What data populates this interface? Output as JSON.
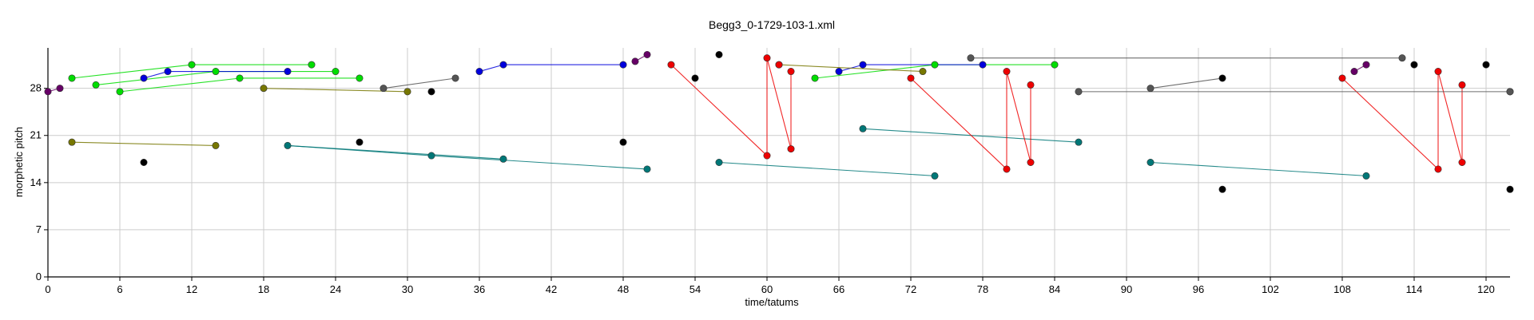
{
  "chart_data": {
    "type": "scatter",
    "title": "Begg3_0-1729-103-1.xml",
    "xlabel": "time/tatums",
    "ylabel": "morphetic pitch",
    "xlim": [
      0,
      122
    ],
    "ylim": [
      0,
      34
    ],
    "xticks": [
      0,
      6,
      12,
      18,
      24,
      30,
      36,
      42,
      48,
      54,
      60,
      66,
      72,
      78,
      84,
      90,
      96,
      102,
      108,
      114,
      120
    ],
    "yticks": [
      0,
      7,
      14,
      21,
      28
    ],
    "grid": true,
    "legend": "none",
    "colors": {
      "black": "#000000",
      "green": "#00dd00",
      "blue": "#0000dd",
      "purple": "#660066",
      "olive": "#777700",
      "teal": "#007777",
      "red": "#ee0000",
      "gray": "#555555",
      "grid": "#cccccc"
    },
    "series": [
      {
        "color": "#000000",
        "points": [
          [
            8,
            17
          ],
          [
            26,
            20
          ],
          [
            32,
            27.5
          ],
          [
            48,
            20
          ],
          [
            54,
            29.5
          ],
          [
            56,
            33
          ],
          [
            98,
            13
          ],
          [
            98,
            29.5
          ],
          [
            114,
            31.5
          ],
          [
            120,
            31.5
          ],
          [
            122,
            13
          ],
          [
            122,
            27.5
          ]
        ]
      },
      {
        "color": "#00dd00",
        "points": [
          [
            2,
            29.5
          ],
          [
            12,
            31.5
          ],
          [
            22,
            31.5
          ],
          [
            4,
            28.5
          ],
          [
            26,
            29.5
          ],
          [
            6,
            27.5
          ],
          [
            16,
            29.5
          ],
          [
            14,
            30.5
          ],
          [
            24,
            30.5
          ],
          [
            64,
            29.5
          ],
          [
            74,
            31.5
          ],
          [
            84,
            31.5
          ]
        ],
        "segments": [
          [
            [
              2,
              29.5
            ],
            [
              12,
              31.5
            ]
          ],
          [
            [
              12,
              31.5
            ],
            [
              22,
              31.5
            ]
          ],
          [
            [
              4,
              28.5
            ],
            [
              14,
              30.5
            ]
          ],
          [
            [
              14,
              30.5
            ],
            [
              24,
              30.5
            ]
          ],
          [
            [
              6,
              27.5
            ],
            [
              16,
              29.5
            ]
          ],
          [
            [
              16,
              29.5
            ],
            [
              26,
              29.5
            ]
          ],
          [
            [
              64,
              29.5
            ],
            [
              74,
              31.5
            ]
          ],
          [
            [
              74,
              31.5
            ],
            [
              84,
              31.5
            ]
          ]
        ]
      },
      {
        "color": "#0000dd",
        "points": [
          [
            8,
            29.5
          ],
          [
            10,
            30.5
          ],
          [
            20,
            30.5
          ],
          [
            36,
            30.5
          ],
          [
            38,
            31.5
          ],
          [
            48,
            31.5
          ],
          [
            66,
            30.5
          ],
          [
            68,
            31.5
          ],
          [
            78,
            31.5
          ]
        ],
        "segments": [
          [
            [
              8,
              29.5
            ],
            [
              10,
              30.5
            ]
          ],
          [
            [
              10,
              30.5
            ],
            [
              20,
              30.5
            ]
          ],
          [
            [
              36,
              30.5
            ],
            [
              38,
              31.5
            ]
          ],
          [
            [
              38,
              31.5
            ],
            [
              48,
              31.5
            ]
          ],
          [
            [
              66,
              30.5
            ],
            [
              68,
              31.5
            ]
          ],
          [
            [
              68,
              31.5
            ],
            [
              78,
              31.5
            ]
          ]
        ]
      },
      {
        "color": "#660066",
        "points": [
          [
            0,
            27.5
          ],
          [
            1,
            28
          ],
          [
            49,
            32
          ],
          [
            50,
            33
          ],
          [
            109,
            30.5
          ],
          [
            110,
            31.5
          ]
        ],
        "segments": [
          [
            [
              0,
              27.5
            ],
            [
              1,
              28
            ]
          ],
          [
            [
              49,
              32
            ],
            [
              50,
              33
            ]
          ],
          [
            [
              109,
              30.5
            ],
            [
              110,
              31.5
            ]
          ]
        ]
      },
      {
        "color": "#777700",
        "points": [
          [
            2,
            20
          ],
          [
            14,
            19.5
          ],
          [
            18,
            28
          ],
          [
            30,
            27.5
          ],
          [
            61,
            31.5
          ],
          [
            73,
            30.5
          ]
        ],
        "segments": [
          [
            [
              2,
              20
            ],
            [
              14,
              19.5
            ]
          ],
          [
            [
              18,
              28
            ],
            [
              30,
              27.5
            ]
          ],
          [
            [
              61,
              31.5
            ],
            [
              73,
              30.5
            ]
          ]
        ]
      },
      {
        "color": "#007777",
        "points": [
          [
            20,
            19.5
          ],
          [
            32,
            18
          ],
          [
            38,
            17.5
          ],
          [
            50,
            16
          ],
          [
            56,
            17
          ],
          [
            74,
            15
          ],
          [
            68,
            22
          ],
          [
            86,
            20
          ],
          [
            92,
            17
          ],
          [
            110,
            15
          ]
        ],
        "segments": [
          [
            [
              20,
              19.5
            ],
            [
              38,
              17.5
            ]
          ],
          [
            [
              20,
              19.5
            ],
            [
              32,
              18
            ]
          ],
          [
            [
              32,
              18
            ],
            [
              50,
              16
            ]
          ],
          [
            [
              56,
              17
            ],
            [
              74,
              15
            ]
          ],
          [
            [
              68,
              22
            ],
            [
              86,
              20
            ]
          ],
          [
            [
              92,
              17
            ],
            [
              110,
              15
            ]
          ]
        ]
      },
      {
        "color": "#ee0000",
        "points": [
          [
            52,
            31.5
          ],
          [
            60,
            18
          ],
          [
            60,
            32.5
          ],
          [
            61,
            31.5
          ],
          [
            62,
            19
          ],
          [
            62,
            30.5
          ],
          [
            72,
            29.5
          ],
          [
            80,
            16
          ],
          [
            80,
            30.5
          ],
          [
            82,
            17
          ],
          [
            82,
            28.5
          ],
          [
            108,
            29.5
          ],
          [
            116,
            16
          ],
          [
            116,
            30.5
          ],
          [
            118,
            17
          ],
          [
            118,
            28.5
          ]
        ],
        "segments": [
          [
            [
              52,
              31.5
            ],
            [
              60,
              18
            ]
          ],
          [
            [
              60,
              18
            ],
            [
              60,
              32.5
            ]
          ],
          [
            [
              60,
              32.5
            ],
            [
              62,
              19
            ]
          ],
          [
            [
              62,
              19
            ],
            [
              62,
              30.5
            ]
          ],
          [
            [
              72,
              29.5
            ],
            [
              80,
              16
            ]
          ],
          [
            [
              80,
              16
            ],
            [
              80,
              30.5
            ]
          ],
          [
            [
              80,
              30.5
            ],
            [
              82,
              17
            ]
          ],
          [
            [
              82,
              17
            ],
            [
              82,
              28.5
            ]
          ],
          [
            [
              108,
              29.5
            ],
            [
              116,
              16
            ]
          ],
          [
            [
              116,
              16
            ],
            [
              116,
              30.5
            ]
          ],
          [
            [
              116,
              30.5
            ],
            [
              118,
              17
            ]
          ],
          [
            [
              118,
              17
            ],
            [
              118,
              28.5
            ]
          ]
        ]
      },
      {
        "color": "#555555",
        "points": [
          [
            28,
            28
          ],
          [
            34,
            29.5
          ],
          [
            77,
            32.5
          ],
          [
            113,
            32.5
          ],
          [
            86,
            27.5
          ],
          [
            92,
            28
          ],
          [
            122,
            27.5
          ]
        ],
        "segments": [
          [
            [
              28,
              28
            ],
            [
              34,
              29.5
            ]
          ],
          [
            [
              77,
              32.5
            ],
            [
              113,
              32.5
            ]
          ],
          [
            [
              86,
              27.5
            ],
            [
              122,
              27.5
            ]
          ],
          [
            [
              92,
              28
            ],
            [
              98,
              29.5
            ]
          ]
        ]
      }
    ]
  }
}
